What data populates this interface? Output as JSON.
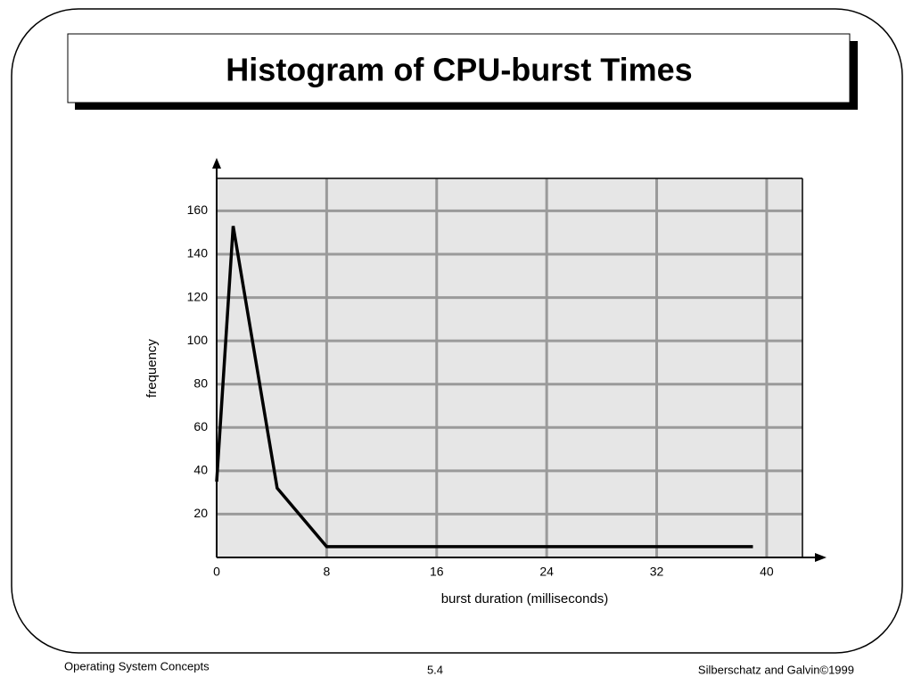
{
  "chart_data": {
    "type": "line",
    "title": "Histogram of CPU-burst Times",
    "x_label": "burst duration (milliseconds)",
    "y_label": "frequency",
    "x": [
      0,
      1.2,
      4.4,
      8,
      39
    ],
    "values": [
      35,
      153,
      32,
      5,
      5
    ],
    "color": "#000000",
    "xlim": [
      0,
      42.6
    ],
    "ylim": [
      0,
      175
    ],
    "xticks": [
      0,
      8,
      16,
      24,
      32,
      40
    ],
    "yticks": [
      20,
      40,
      60,
      80,
      100,
      120,
      140,
      160
    ],
    "grid": true
  },
  "footer": {
    "left": "Operating System Concepts",
    "center": "5.4",
    "right": "Silberschatz and Galvin©1999"
  }
}
